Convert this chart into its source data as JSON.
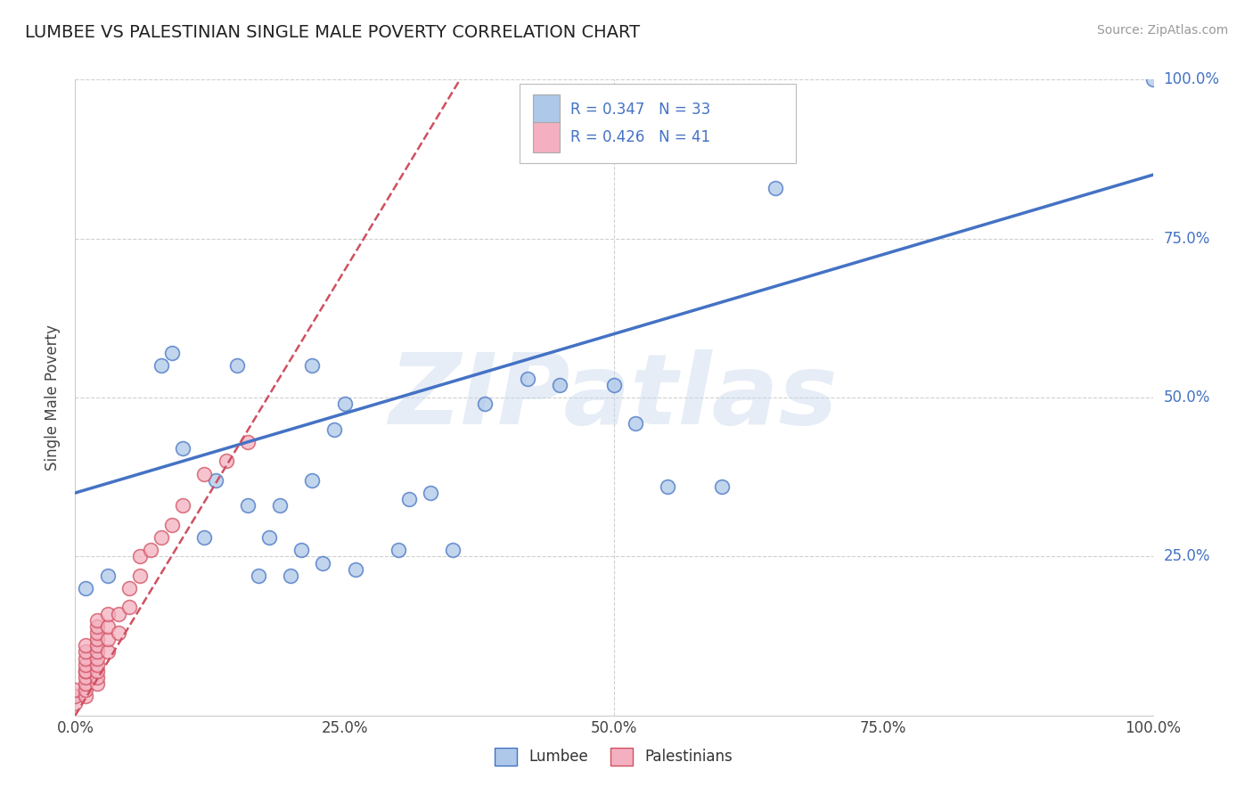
{
  "title": "LUMBEE VS PALESTINIAN SINGLE MALE POVERTY CORRELATION CHART",
  "source": "Source: ZipAtlas.com",
  "ylabel": "Single Male Poverty",
  "watermark": "ZIPatlas",
  "lumbee_R": 0.347,
  "lumbee_N": 33,
  "palestinian_R": 0.426,
  "palestinian_N": 41,
  "lumbee_color": "#adc8e8",
  "palestinian_color": "#f4b0c0",
  "lumbee_line_color": "#4472c4",
  "palestinian_line_color": "#d05060",
  "title_color": "#222222",
  "legend_R_color": "#4472c4",
  "axis_tick_color": "#4472c4",
  "grid_color": "#d0d0d0",
  "lumbee_x": [
    0.01,
    0.03,
    0.08,
    0.09,
    0.1,
    0.12,
    0.13,
    0.15,
    0.16,
    0.17,
    0.18,
    0.19,
    0.2,
    0.21,
    0.22,
    0.22,
    0.23,
    0.24,
    0.25,
    0.26,
    0.3,
    0.31,
    0.33,
    0.35,
    0.38,
    0.42,
    0.45,
    0.5,
    0.52,
    0.55,
    0.6,
    0.65,
    1.0
  ],
  "lumbee_y": [
    0.2,
    0.22,
    0.55,
    0.57,
    0.42,
    0.28,
    0.37,
    0.55,
    0.33,
    0.22,
    0.28,
    0.33,
    0.22,
    0.26,
    0.55,
    0.37,
    0.24,
    0.45,
    0.49,
    0.23,
    0.26,
    0.34,
    0.35,
    0.26,
    0.49,
    0.53,
    0.52,
    0.52,
    0.46,
    0.36,
    0.36,
    0.83,
    1.0
  ],
  "palestinian_x": [
    0.0,
    0.0,
    0.0,
    0.01,
    0.01,
    0.01,
    0.01,
    0.01,
    0.01,
    0.01,
    0.01,
    0.01,
    0.01,
    0.02,
    0.02,
    0.02,
    0.02,
    0.02,
    0.02,
    0.02,
    0.02,
    0.02,
    0.02,
    0.02,
    0.03,
    0.03,
    0.03,
    0.03,
    0.04,
    0.04,
    0.05,
    0.05,
    0.06,
    0.06,
    0.07,
    0.08,
    0.09,
    0.1,
    0.12,
    0.14,
    0.16
  ],
  "palestinian_y": [
    0.02,
    0.03,
    0.04,
    0.03,
    0.04,
    0.05,
    0.06,
    0.07,
    0.07,
    0.08,
    0.09,
    0.1,
    0.11,
    0.05,
    0.06,
    0.07,
    0.08,
    0.09,
    0.1,
    0.11,
    0.12,
    0.13,
    0.14,
    0.15,
    0.1,
    0.12,
    0.14,
    0.16,
    0.13,
    0.16,
    0.17,
    0.2,
    0.22,
    0.25,
    0.26,
    0.28,
    0.3,
    0.33,
    0.38,
    0.4,
    0.43
  ],
  "xlim": [
    0.0,
    1.0
  ],
  "ylim": [
    0.0,
    1.0
  ],
  "xticks": [
    0.0,
    0.25,
    0.5,
    0.75,
    1.0
  ],
  "xtick_labels": [
    "0.0%",
    "25.0%",
    "50.0%",
    "75.0%",
    "100.0%"
  ],
  "ytick_positions": [
    0.25,
    0.5,
    0.75,
    1.0
  ],
  "ytick_labels": [
    "25.0%",
    "50.0%",
    "75.0%",
    "100.0%"
  ],
  "lumbee_line_intercept": 0.35,
  "lumbee_line_slope": 0.5,
  "palestinian_line_intercept": 0.0,
  "palestinian_line_slope": 2.8
}
